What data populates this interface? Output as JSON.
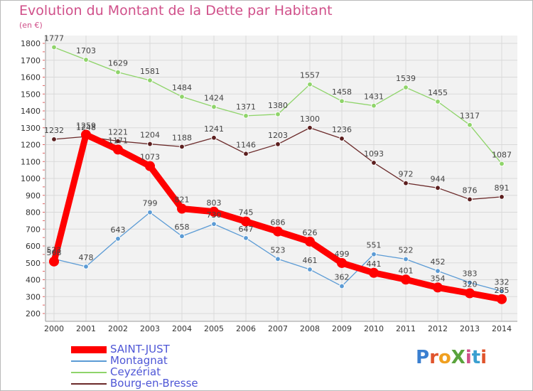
{
  "title": "Evolution du Montant de la Dette par Habitant",
  "unit_label": "(en €)",
  "logo_text": "ProXiti",
  "chart_data": {
    "type": "line",
    "title": "Evolution du Montant de la Dette par Habitant",
    "ylabel": "(en €)",
    "xlabel": "",
    "x": [
      "2000",
      "2001",
      "2002",
      "2003",
      "2004",
      "2005",
      "2006",
      "2007",
      "2008",
      "2009",
      "2010",
      "2011",
      "2012",
      "2013",
      "2014"
    ],
    "ylim": [
      200,
      1800
    ],
    "yticks": [
      200,
      300,
      400,
      500,
      600,
      700,
      800,
      900,
      1000,
      1100,
      1200,
      1300,
      1400,
      1500,
      1600,
      1700,
      1800
    ],
    "grid": true,
    "legend_position": "bottom-left",
    "series": [
      {
        "name": "SAINT-JUST",
        "color": "#ff0000",
        "values": [
          508,
          1259,
          1171,
          1073,
          821,
          803,
          745,
          686,
          626,
          499,
          441,
          401,
          354,
          320,
          285
        ],
        "labels": [
          "508",
          "1259",
          "1171",
          "1073",
          "821",
          "803",
          "745",
          "686",
          "626",
          "499",
          "441",
          "401",
          "354",
          "320",
          "285"
        ]
      },
      {
        "name": "Montagnat",
        "color": "#5b9bd5",
        "values": [
          523,
          478,
          643,
          799,
          658,
          730,
          647,
          523,
          461,
          362,
          551,
          522,
          452,
          383,
          332
        ],
        "labels": [
          "523",
          "478",
          "643",
          "799",
          "658",
          "730",
          "647",
          "523",
          "461",
          "362",
          "551",
          "522",
          "452",
          "383",
          "332"
        ]
      },
      {
        "name": "Ceyzériat",
        "color": "#8fd46a",
        "values": [
          1777,
          1703,
          1629,
          1581,
          1484,
          1424,
          1371,
          1380,
          1557,
          1458,
          1431,
          1539,
          1455,
          1317,
          1087
        ],
        "labels": [
          "1777",
          "1703",
          "1629",
          "1581",
          "1484",
          "1424",
          "1371",
          "1380",
          "1557",
          "1458",
          "1431",
          "1539",
          "1455",
          "1317",
          "1087"
        ]
      },
      {
        "name": "Bourg-en-Bresse",
        "color": "#6b2a2a",
        "values": [
          1232,
          1248,
          1221,
          1204,
          1188,
          1241,
          1146,
          1203,
          1300,
          1236,
          1093,
          972,
          944,
          876,
          891
        ],
        "labels": [
          "1232",
          "1248",
          "1221",
          "1204",
          "1188",
          "1241",
          "1146",
          "1203",
          "1300",
          "1236",
          "1093",
          "972",
          "944",
          "876",
          "891"
        ]
      }
    ]
  }
}
